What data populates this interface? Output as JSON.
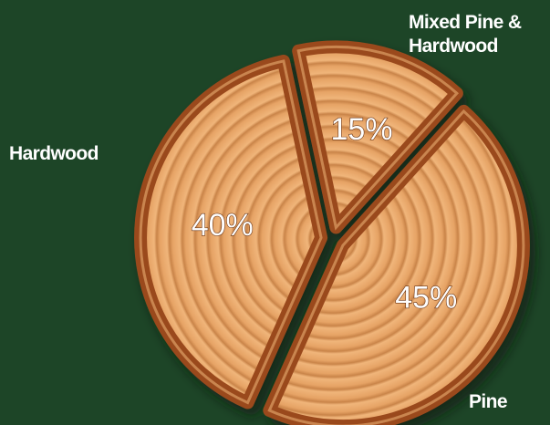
{
  "chart_data": {
    "type": "pie",
    "categories": [
      "Hardwood",
      "Mixed Pine & Hardwood",
      "Pine"
    ],
    "values": [
      40,
      15,
      45
    ],
    "value_labels": [
      "40%",
      "15%",
      "45%"
    ],
    "color": "#e9ad70"
  }
}
